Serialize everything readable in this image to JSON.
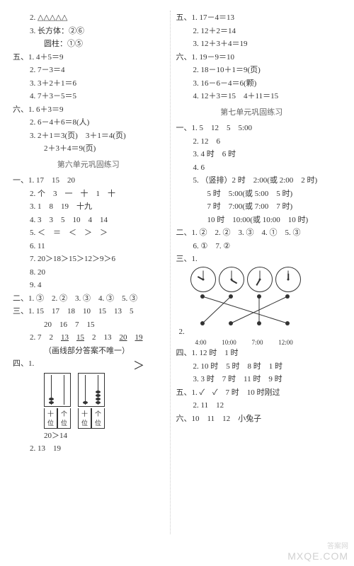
{
  "left": {
    "l1": "2. △△△△△",
    "l2": "3. 长方体：②⑥",
    "l3": "圆柱：①⑤",
    "sec5": "五、",
    "l4": "1. 4＋5＝9",
    "l5": "2. 7－3＝4",
    "l6": "3. 3＋2＋1＝6",
    "l7": "4. 7＋3－5＝5",
    "sec6": "六、",
    "l8": "1. 6＋3＝9",
    "l9": "2. 6－4＋6＝8(人)",
    "l10": "3. 2＋1＝3(页)　3＋1＝4(页)",
    "l11": "2＋3＋4＝9(页)",
    "h1": "第六单元巩固练习",
    "sec1": "一、",
    "l12": "1. 17　15　20",
    "l13": "2. 个　3　一　十　1　十",
    "l14": "3. 1　8　19　十九",
    "l15": "4. 3　3　5　10　4　14",
    "l16": "5. ＜　＝　＜　＞　＞",
    "l17": "6. 11",
    "l18": "7. 20＞18＞15＞12＞9＞6",
    "l19": "8. 20",
    "l20": "9. 4",
    "sec2": "二、",
    "l21": "1. ③　2. ②　3. ③　4. ③　5. ③",
    "sec3": "三、",
    "l22": "1. 15　17　18　10　15　13　5",
    "l23": "20　16　7　15",
    "l24a": "2. 7　2　",
    "l24u1": "13",
    "l24u2": "15",
    "l24b": "　2　13　",
    "l24u3": "20",
    "l24u4": "19",
    "l25": "（画线部分答案不唯一）",
    "sec4": "四、",
    "l26": "1.",
    "gt": "＞",
    "abacus_labels": [
      "十位",
      "个位",
      "十位",
      "个位"
    ],
    "l27": "20＞14",
    "l28": "2. 13　19"
  },
  "right": {
    "sec5": "五、",
    "l1": "1. 17－4＝13",
    "l2": "2. 12＋2＝14",
    "l3": "3. 12＋3＋4＝19",
    "sec6": "六、",
    "l4": "1. 19－9＝10",
    "l5": "2. 18－10＋1＝9(页)",
    "l6": "3. 16－6－4＝6(颗)",
    "l7": "4. 12＋3＝15　4＋11＝15",
    "h1": "第七单元巩固练习",
    "sec1": "一、",
    "l8": "1. 5　12　5　5:00",
    "l9": "2. 12　6",
    "l10": "3. 4 时　6 时",
    "l11": "4. 6",
    "l12": "5. （竖排）2 时　2:00(或 2:00　2 时)",
    "l13": "5 时　5:00(或 5:00　5 时)",
    "l14": "7 时　7:00(或 7:00　7 时)",
    "l15": "10 时　10:00(或 10:00　10 时)",
    "sec2": "二、",
    "l16": "1. ②　2. ②　3. ③　4. ①　5. ③",
    "l17": "6. ①　7. ②",
    "sec3": "三、",
    "l18": "1.",
    "clocks": [
      {
        "hour_deg": -150,
        "min_deg": -90
      },
      {
        "hour_deg": 30,
        "min_deg": -90
      },
      {
        "hour_deg": 120,
        "min_deg": -90
      },
      {
        "hour_deg": -90,
        "min_deg": -90
      }
    ],
    "match": {
      "dot_color": "#333333",
      "line_color": "#333333",
      "top_x": [
        17,
        57,
        97,
        137
      ],
      "bot_x": [
        17,
        57,
        97,
        137
      ],
      "edges": [
        [
          0,
          3
        ],
        [
          1,
          0
        ],
        [
          2,
          2
        ],
        [
          3,
          1
        ]
      ]
    },
    "l19": "2.",
    "match_labels": [
      "4:00",
      "10:00",
      "7:00",
      "12:00"
    ],
    "sec4": "四、",
    "l20": "1. 12 时　1 时",
    "l21": "2. 10 时　5 时　8 时　1 时",
    "l22": "3. 3 时　7 时　11 时　9 时",
    "sec5b": "五、",
    "l23": "1. ✓　✓　7 时　10 时刚过",
    "l24": "2. 11　12",
    "sec6b": "六、",
    "l25": "10　11　12　小兔子"
  }
}
